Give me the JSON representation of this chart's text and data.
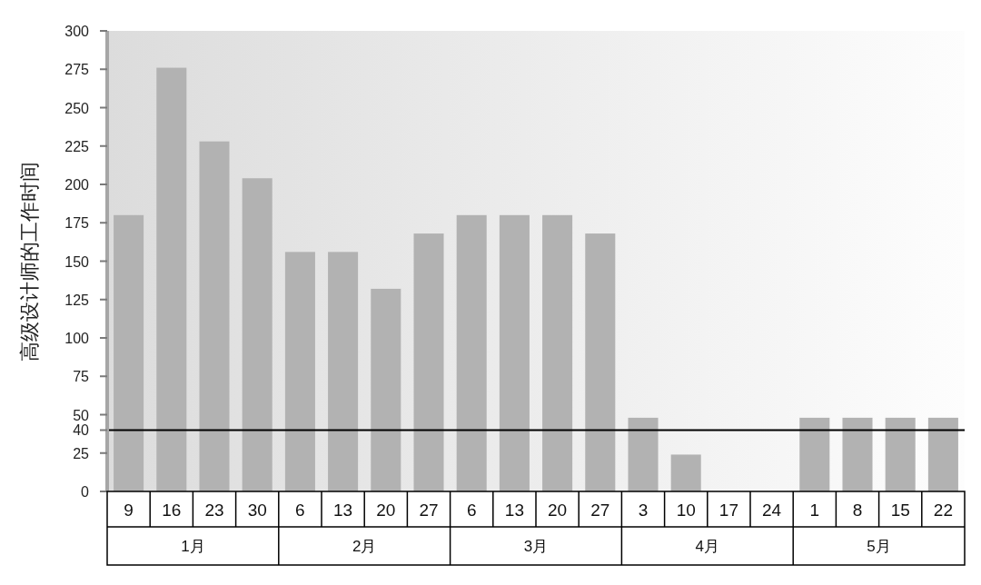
{
  "chart_data": {
    "type": "bar",
    "ylabel": "高级设计师的工作时间",
    "categories": [
      "9",
      "16",
      "23",
      "30",
      "6",
      "13",
      "20",
      "27",
      "6",
      "13",
      "20",
      "27",
      "3",
      "10",
      "17",
      "24",
      "1",
      "8",
      "15",
      "22"
    ],
    "values": [
      180,
      276,
      228,
      204,
      156,
      156,
      132,
      168,
      180,
      180,
      180,
      168,
      48,
      24,
      0,
      0,
      48,
      48,
      48,
      48
    ],
    "color": "#b2b2b2",
    "ylim": [
      0,
      300
    ],
    "yticks": [
      0,
      25,
      40,
      50,
      75,
      100,
      125,
      150,
      175,
      200,
      225,
      250,
      275,
      300
    ],
    "ref_lines": [
      {
        "axis": "y",
        "value": 40,
        "color": "#000000"
      }
    ],
    "annotations": [
      "1月",
      "2月",
      "3月",
      "4月",
      "5月"
    ]
  }
}
